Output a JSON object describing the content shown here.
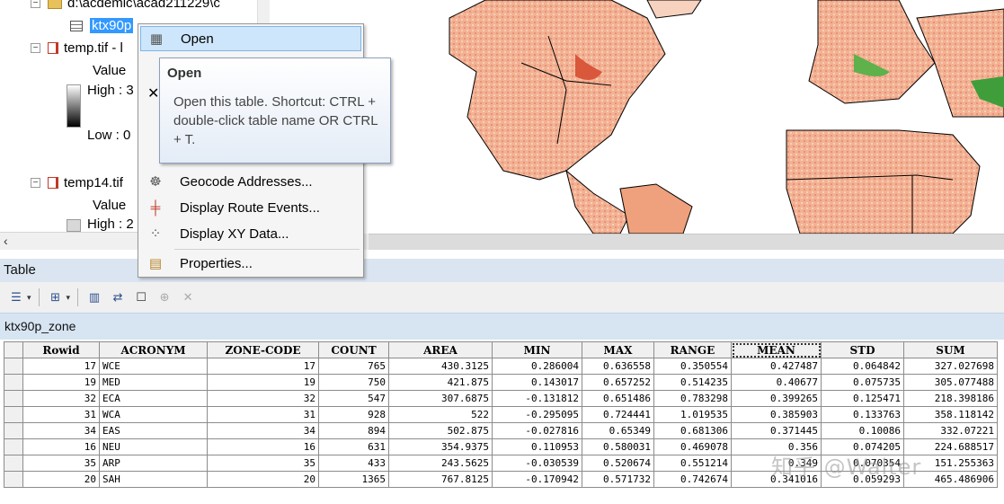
{
  "toc": {
    "workspace_path": "d:\\acdemic\\acad211229\\c",
    "selected_table": "ktx90p",
    "layers": [
      {
        "name": "temp.tif - l",
        "value_label": "Value",
        "high": "High : 3",
        "low": "Low : 0"
      },
      {
        "name": "temp14.tif",
        "value_label": "Value",
        "high": "High : 2"
      }
    ]
  },
  "context_menu": {
    "items": [
      {
        "label": "Open",
        "icon": "table-icon"
      },
      {
        "label": "Geocode Addresses...",
        "icon": "geocode-icon"
      },
      {
        "label": "Display Route Events...",
        "icon": "route-events-icon"
      },
      {
        "label": "Display XY Data...",
        "icon": "xy-data-icon"
      },
      {
        "label": "Properties...",
        "icon": "properties-icon"
      }
    ]
  },
  "tooltip": {
    "title": "Open",
    "body": "Open this table. Shortcut: CTRL + double-click table name OR CTRL + T."
  },
  "table_window": {
    "title": "Table",
    "tab_name": "ktx90p_zone",
    "columns": [
      "Rowid",
      "ACRONYM",
      "ZONE-CODE",
      "COUNT",
      "AREA",
      "MIN",
      "MAX",
      "RANGE",
      "MEAN",
      "STD",
      "SUM"
    ],
    "selected_column": "MEAN",
    "rows": [
      [
        "17",
        "WCE",
        "17",
        "765",
        "430.3125",
        "0.286004",
        "0.636558",
        "0.350554",
        "0.427487",
        "0.064842",
        "327.027698"
      ],
      [
        "19",
        "MED",
        "19",
        "750",
        "421.875",
        "0.143017",
        "0.657252",
        "0.514235",
        "0.40677",
        "0.075735",
        "305.077488"
      ],
      [
        "32",
        "ECA",
        "32",
        "547",
        "307.6875",
        "-0.131812",
        "0.651486",
        "0.783298",
        "0.399265",
        "0.125471",
        "218.398186"
      ],
      [
        "31",
        "WCA",
        "31",
        "928",
        "522",
        "-0.295095",
        "0.724441",
        "1.019535",
        "0.385903",
        "0.133763",
        "358.118142"
      ],
      [
        "34",
        "EAS",
        "34",
        "894",
        "502.875",
        "-0.027816",
        "0.65349",
        "0.681306",
        "0.371445",
        "0.10086",
        "332.07221"
      ],
      [
        "16",
        "NEU",
        "16",
        "631",
        "354.9375",
        "0.110953",
        "0.580031",
        "0.469078",
        "0.356",
        "0.074205",
        "224.688517"
      ],
      [
        "35",
        "ARP",
        "35",
        "433",
        "243.5625",
        "-0.030539",
        "0.520674",
        "0.551214",
        "0.349",
        "0.070354",
        "151.255363"
      ],
      [
        "20",
        "SAH",
        "20",
        "1365",
        "767.8125",
        "-0.170942",
        "0.571732",
        "0.742674",
        "0.341016",
        "0.059293",
        "465.486906"
      ]
    ]
  },
  "watermark": "知乎 @Walter"
}
